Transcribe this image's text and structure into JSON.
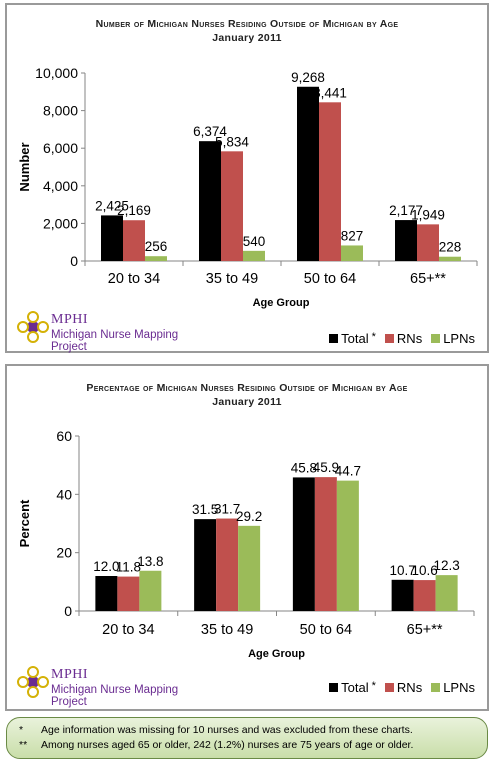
{
  "charts": [
    {
      "title": "Number of Michigan Nurses Residing Outside of Michigan by Age",
      "subtitle": "January 2011",
      "logo": {
        "brand": "MPHI",
        "project": "Michigan Nurse Mapping Project"
      },
      "legend": [
        {
          "label": "Total",
          "marker": "*"
        },
        {
          "label": "RNs",
          "marker": ""
        },
        {
          "label": "LPNs",
          "marker": ""
        }
      ],
      "x_tick_labels": [
        "20 to 34",
        "35 to 49",
        "50 to 64",
        "65+**"
      ],
      "y_tick_labels": [
        "0",
        "2,000",
        "4,000",
        "6,000",
        "8,000",
        "10,000"
      ],
      "data_labels": [
        [
          "2,425",
          "2,169",
          "256"
        ],
        [
          "6,374",
          "5,834",
          "540"
        ],
        [
          "9,268",
          "8,441",
          "827"
        ],
        [
          "2,177",
          "1,949",
          "228"
        ]
      ]
    },
    {
      "title": "Percentage of Michigan Nurses Residing Outside of Michigan by Age",
      "subtitle": "January 2011",
      "logo": {
        "brand": "MPHI",
        "project": "Michigan Nurse Mapping Project"
      },
      "legend": [
        {
          "label": "Total",
          "marker": "*"
        },
        {
          "label": "RNs",
          "marker": ""
        },
        {
          "label": "LPNs",
          "marker": ""
        }
      ],
      "x_tick_labels": [
        "20 to 34",
        "35 to 49",
        "50 to 64",
        "65+**"
      ],
      "y_tick_labels": [
        "0",
        "20",
        "40",
        "60"
      ],
      "data_labels": [
        [
          "12.0",
          "11.8",
          "13.8"
        ],
        [
          "31.5",
          "31.7",
          "29.2"
        ],
        [
          "45.8",
          "45.9",
          "44.7"
        ],
        [
          "10.7",
          "10.6",
          "12.3"
        ]
      ]
    }
  ],
  "footnotes": [
    {
      "mark": "*",
      "text": "Age information was missing for 10 nurses and was excluded from these charts."
    },
    {
      "mark": "**",
      "text": "Among nurses aged 65 or older, 242 (1.2%) nurses are 75 years of age or older."
    }
  ],
  "colors": {
    "Total": "#000000",
    "RNs": "#c0504d",
    "LPNs": "#9bbb59",
    "footnote_border": "#6a8a45",
    "logo_purple": "#6a2c91",
    "logo_gold": "#d4b106"
  },
  "chart_data": [
    {
      "type": "bar",
      "title": "Number of Michigan Nurses Residing Outside of Michigan by Age",
      "subtitle": "January 2011",
      "xlabel": "Age Group",
      "ylabel": "Number",
      "categories": [
        "20 to 34",
        "35 to 49",
        "50 to 64",
        "65+**"
      ],
      "series": [
        {
          "name": "Total",
          "values": [
            2425,
            6374,
            9268,
            2177
          ]
        },
        {
          "name": "RNs",
          "values": [
            2169,
            5834,
            8441,
            1949
          ]
        },
        {
          "name": "LPNs",
          "values": [
            256,
            540,
            827,
            228
          ]
        }
      ],
      "ylim": [
        0,
        10000
      ],
      "yticks": [
        0,
        2000,
        4000,
        6000,
        8000,
        10000
      ],
      "grid": false,
      "legend": "bottom-right"
    },
    {
      "type": "bar",
      "title": "Percentage of Michigan Nurses Residing Outside of Michigan by Age",
      "subtitle": "January 2011",
      "xlabel": "Age Group",
      "ylabel": "Percent",
      "categories": [
        "20 to 34",
        "35 to 49",
        "50 to 64",
        "65+**"
      ],
      "series": [
        {
          "name": "Total",
          "values": [
            12.0,
            31.5,
            45.8,
            10.7
          ]
        },
        {
          "name": "RNs",
          "values": [
            11.8,
            31.7,
            45.9,
            10.6
          ]
        },
        {
          "name": "LPNs",
          "values": [
            13.8,
            29.2,
            44.7,
            12.3
          ]
        }
      ],
      "ylim": [
        0,
        60
      ],
      "yticks": [
        0,
        20,
        40,
        60
      ],
      "grid": false,
      "legend": "bottom-right"
    }
  ]
}
